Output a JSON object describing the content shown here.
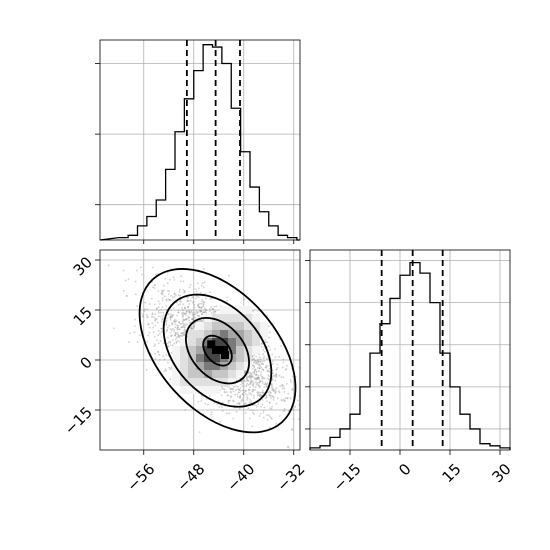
{
  "chart_data": {
    "type": "corner",
    "parameters": [
      {
        "axis_ticks": [
          -56,
          -48,
          -40,
          -32
        ],
        "axis_tick_labels": [
          "−56",
          "−48",
          "−40",
          "−32"
        ],
        "range": [
          -63,
          -31
        ],
        "quantiles": [
          -49.1,
          -44.5,
          -40.6
        ],
        "histogram": {
          "bin_edges": [
            -60,
            -58.5,
            -57,
            -55.5,
            -54,
            -52.5,
            -51,
            -49.5,
            -48,
            -46.5,
            -45,
            -43.5,
            -42,
            -40.5,
            -39,
            -37.5,
            -36,
            -34.5,
            -33,
            -31.5
          ],
          "counts": [
            2,
            4,
            12,
            20,
            34,
            60,
            92,
            120,
            144,
            166,
            164,
            150,
            112,
            75,
            45,
            24,
            12,
            4,
            2
          ],
          "y_max": 170,
          "y_ticks": [
            30,
            90,
            150
          ]
        }
      },
      {
        "axis_ticks": [
          -15,
          0,
          15,
          30
        ],
        "axis_tick_labels": [
          "−15",
          "0",
          "15",
          "30"
        ],
        "range": [
          -27,
          33
        ],
        "quantiles": [
          -5.5,
          3.8,
          12.8
        ],
        "histogram": {
          "bin_edges": [
            -27,
            -24,
            -21,
            -18,
            -15,
            -12,
            -9,
            -6,
            -3,
            0,
            3,
            6,
            9,
            12,
            15,
            18,
            21,
            24,
            27,
            30,
            33
          ],
          "counts": [
            2,
            4,
            12,
            20,
            34,
            60,
            92,
            120,
            144,
            166,
            178,
            168,
            140,
            92,
            60,
            34,
            20,
            6,
            4,
            2
          ],
          "y_max": 190,
          "y_ticks": [
            20,
            60,
            100,
            140,
            180
          ]
        }
      }
    ],
    "joint": {
      "x_param": 0,
      "y_param": 1,
      "center": [
        -44.2,
        2.8
      ],
      "density_peak": [
        -45.2,
        4.7
      ],
      "contours": [
        {
          "semi_axis_major": 2.4,
          "semi_axis_minor": 1.6
        },
        {
          "semi_axis_major": 5.2,
          "semi_axis_minor": 3.6
        },
        {
          "semi_axis_major": 9.0,
          "semi_axis_minor": 6.0
        },
        {
          "semi_axis_major": 13.4,
          "semi_axis_minor": 8.2
        }
      ],
      "correlation_angle_deg": -42,
      "x_spread": 5.0,
      "y_spread": 8.5,
      "correlation": -0.6,
      "point_color": "#999999",
      "contour_color": "#000000",
      "density_colors": [
        "#f4f4f4",
        "#e0e0e0",
        "#c6c6c6",
        "#a6a6a6",
        "#7a7a7a",
        "#444444",
        "#000000"
      ]
    },
    "grid": true
  }
}
